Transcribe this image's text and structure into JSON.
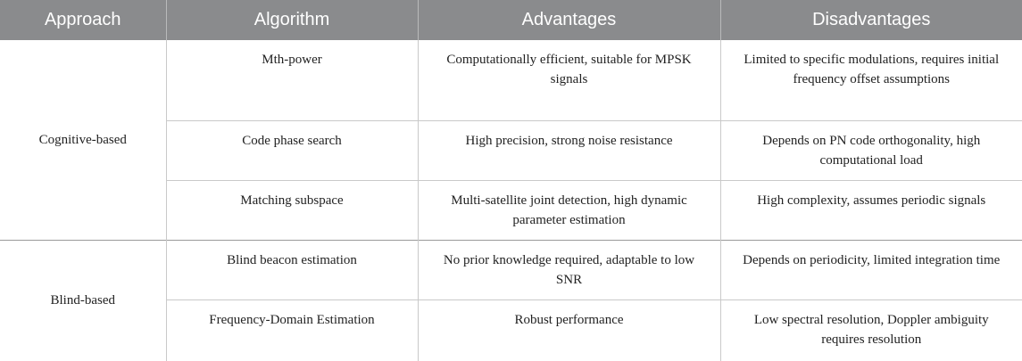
{
  "headers": [
    "Approach",
    "Algorithm",
    "Advantages",
    "Disadvantages"
  ],
  "groups": [
    {
      "approach": "Cognitive-based",
      "rows": [
        {
          "algorithm": "Mth-power",
          "advantages": "Computationally efficient, suitable for MPSK signals",
          "disadvantages": "Limited to specific modulations, requires initial frequency offset assumptions"
        },
        {
          "algorithm": "Code phase search",
          "advantages": "High precision, strong noise resistance",
          "disadvantages": "Depends on PN code orthogonality, high computational load"
        },
        {
          "algorithm": "Matching subspace",
          "advantages": "Multi-satellite joint detection, high dynamic parameter estimation",
          "disadvantages": "High complexity, assumes periodic signals"
        }
      ]
    },
    {
      "approach": "Blind-based",
      "rows": [
        {
          "algorithm": "Blind beacon estimation",
          "advantages": "No prior knowledge required, adaptable to low SNR",
          "disadvantages": "Depends on periodicity, limited integration time"
        },
        {
          "algorithm": "Frequency-Domain Estimation",
          "advantages": "Robust performance",
          "disadvantages": "Low spectral resolution, Doppler ambiguity requires resolution"
        }
      ]
    }
  ]
}
